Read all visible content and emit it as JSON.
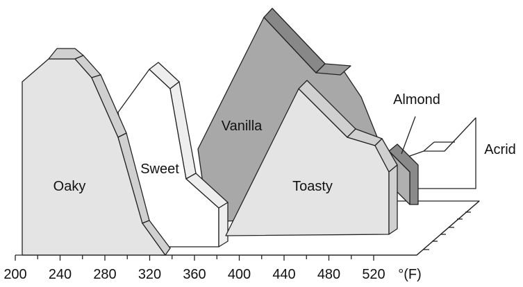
{
  "labels": [
    "Oaky",
    "Sweet",
    "Vanilla",
    "Toasty",
    "Almond",
    "Acrid"
  ],
  "x_axis": {
    "ticks": [
      "200",
      "240",
      "280",
      "320",
      "360",
      "400",
      "440",
      "480",
      "520"
    ],
    "unit": "°(F)"
  }
}
